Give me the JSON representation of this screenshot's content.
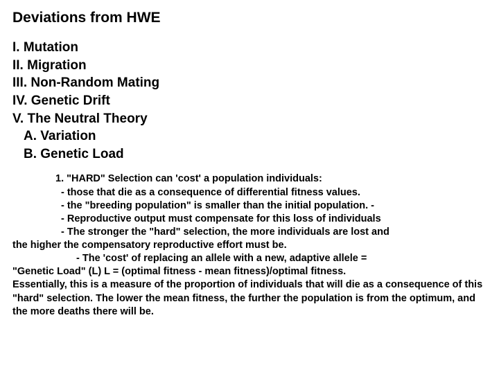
{
  "title": "Deviations from HWE",
  "outline": {
    "i": "I. Mutation",
    "ii": "II. Migration",
    "iii": "III. Non-Random Mating",
    "iv": "IV. Genetic Drift",
    "v": "V. The Neutral Theory",
    "a": "A. Variation",
    "b": "B. Genetic Load"
  },
  "body": {
    "l1": "1. \"HARD\" Selection can 'cost' a population individuals:",
    "l2": "- those that die as a consequence of differential fitness values.",
    "l3": "- the \"breeding population\" is smaller than the initial population.     -",
    "l4": "- Reproductive output must compensate for this loss of individuals",
    "l5a": "- The stronger the \"hard\" selection, the more individuals are lost and",
    "l5b": "the higher the compensatory reproductive effort must be.",
    "l6a": "- The 'cost' of replacing an allele with a new, adaptive allele =",
    "l6b": "\"Genetic Load\" (L) L = (optimal fitness - mean fitness)/optimal fitness.",
    "l7": "Essentially, this is a measure of the proportion of individuals that will die as a consequence of this \"hard\" selection. The lower the mean fitness, the further the population is from the optimum, and the more deaths there will be."
  }
}
